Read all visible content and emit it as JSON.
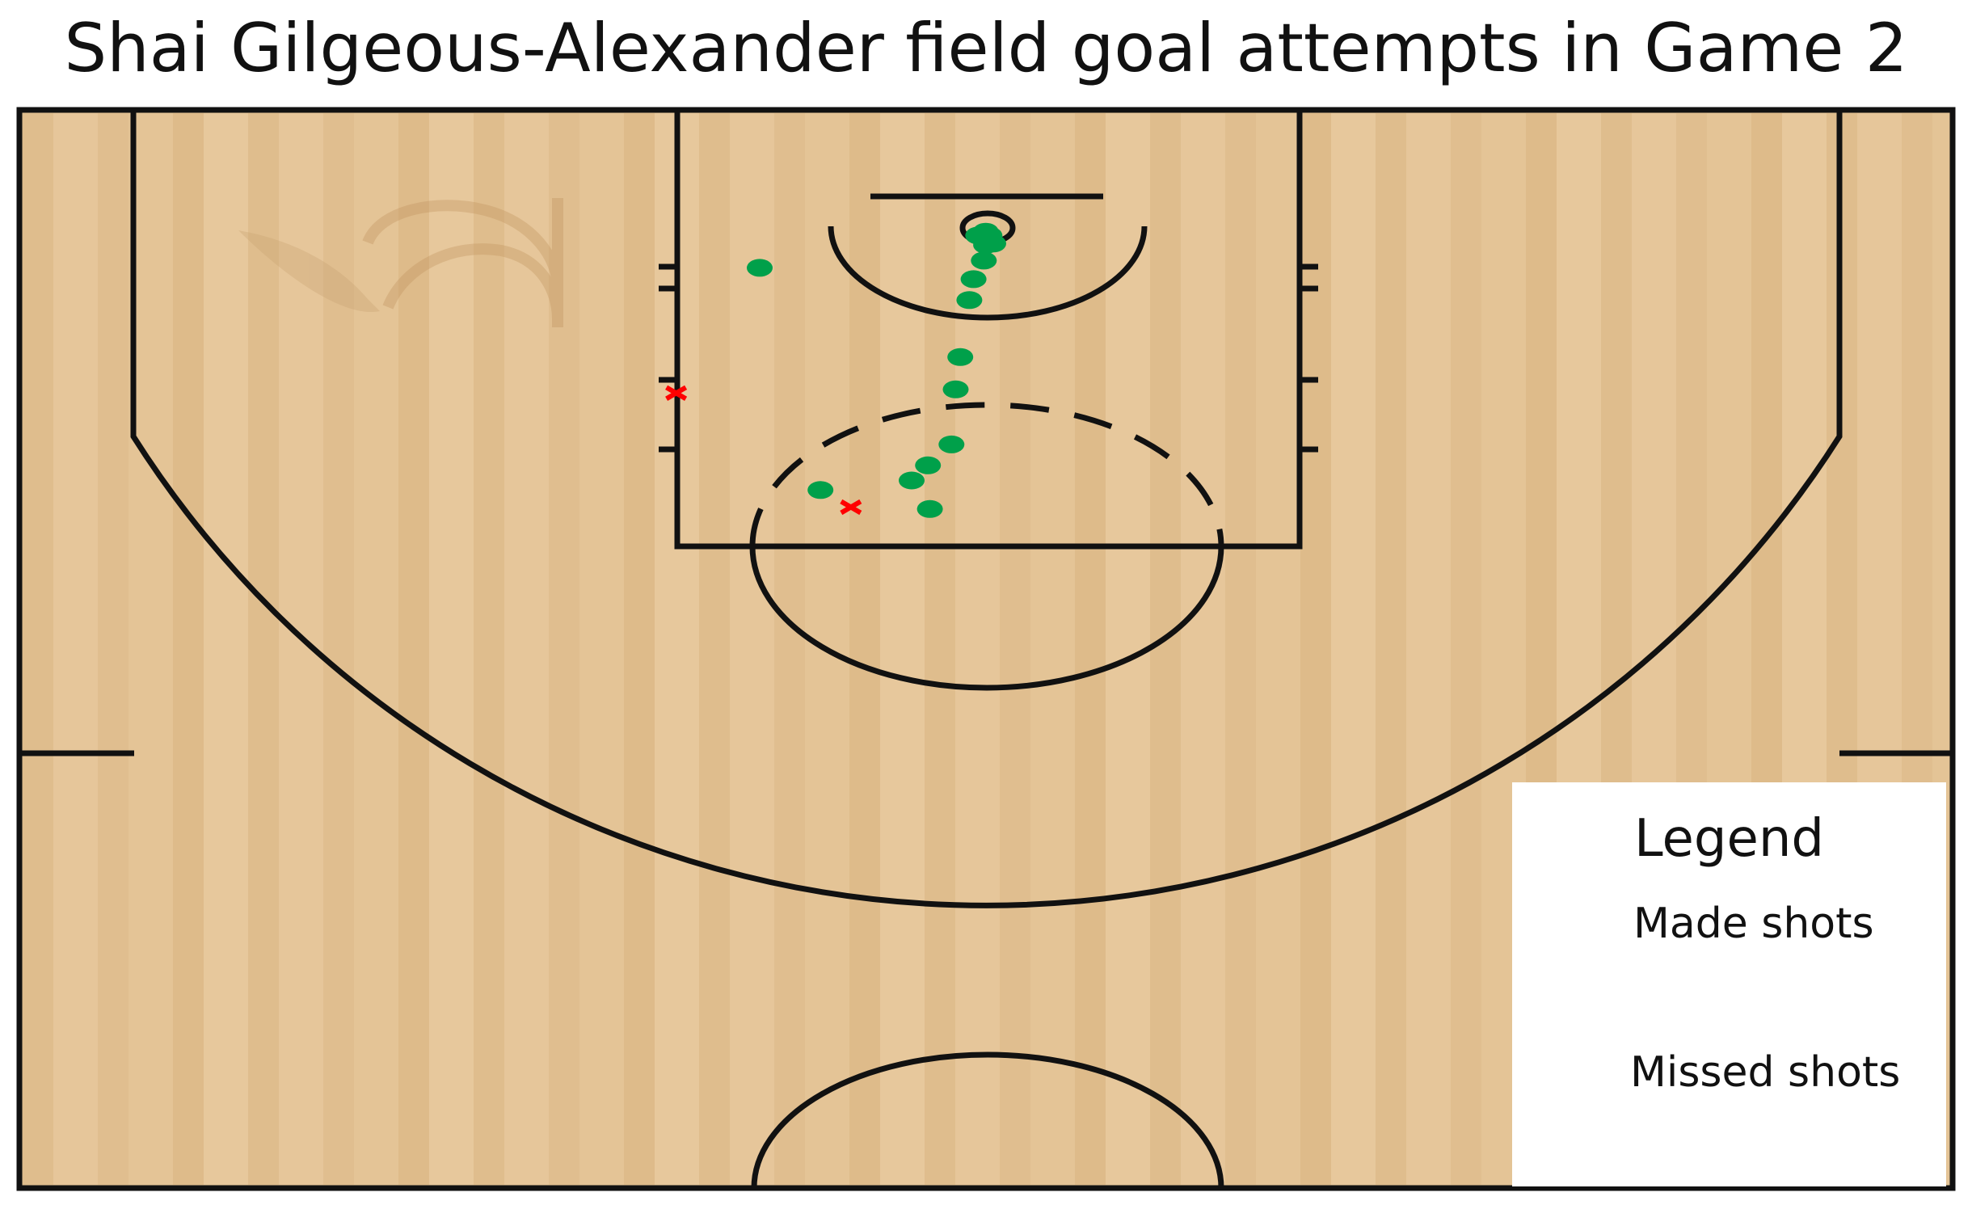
{
  "chart_data": {
    "type": "scatter",
    "title": "Shai Gilgeous-Alexander field goal attempts in Game 2",
    "legend": {
      "title": "Legend",
      "placement": "bottom-right",
      "entries": [
        {
          "label": "Made shots",
          "marker": "circle",
          "color": "#00a04a"
        },
        {
          "label": "Missed shots",
          "marker": "x",
          "color": "#ff0000"
        }
      ]
    },
    "series": [
      {
        "name": "Made shots",
        "color": "#00a04a",
        "points": [
          {
            "x": 0.05,
            "y": 0.1
          },
          {
            "x": 0.04,
            "y": 0.45
          },
          {
            "x": 0.25,
            "y": 0.2
          },
          {
            "x": -0.05,
            "y": 0.2
          },
          {
            "x": -0.15,
            "y": 0.41
          },
          {
            "x": 0.1,
            "y": 0.86
          },
          {
            "x": 0.37,
            "y": 1.35
          },
          {
            "x": 0.48,
            "y": 1.9
          },
          {
            "x": 0.72,
            "y": 3.4
          },
          {
            "x": 0.84,
            "y": 4.25
          },
          {
            "x": 0.95,
            "y": 5.7
          },
          {
            "x": 1.57,
            "y": 6.25
          },
          {
            "x": 1.52,
            "y": 7.4
          },
          {
            "x": 2.0,
            "y": 6.65
          },
          {
            "x": 4.4,
            "y": 6.9
          },
          {
            "x": 6.0,
            "y": 1.05
          }
        ]
      },
      {
        "name": "Missed shots",
        "color": "#ff0000",
        "points": [
          {
            "x": 3.6,
            "y": 7.35
          },
          {
            "x": 8.2,
            "y": 4.35
          }
        ]
      }
    ]
  },
  "colors": {
    "court_wood": "#e3c293",
    "paint_wood": "#e8b27a",
    "court_line": "#111111",
    "made": "#00a04a",
    "missed": "#ff0000",
    "legend_bg": "#ffffff"
  }
}
